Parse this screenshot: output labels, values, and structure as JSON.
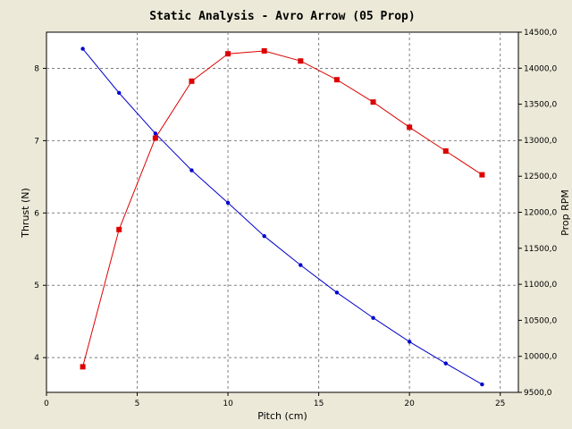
{
  "chart_data": {
    "type": "line",
    "title": "Static Analysis - Avro Arrow (05 Prop)",
    "xlabel": "Pitch (cm)",
    "ylabel_left": "Thrust (N)",
    "ylabel_right": "Prop RPM",
    "xlim": [
      0,
      26
    ],
    "ylim_left": [
      3.52,
      8.5
    ],
    "ylim_right": [
      9500,
      14500
    ],
    "x_ticks": [
      0,
      5,
      10,
      15,
      20,
      25
    ],
    "x_tick_labels": [
      "0",
      "5",
      "10",
      "15",
      "20",
      "25"
    ],
    "y_left_ticks": [
      4,
      5,
      6,
      7,
      8
    ],
    "y_left_tick_labels": [
      "4",
      "5",
      "6",
      "7",
      "8"
    ],
    "y_right_ticks": [
      9500,
      10000,
      10500,
      11000,
      11500,
      12000,
      12500,
      13000,
      13500,
      14000,
      14500
    ],
    "y_right_tick_labels": [
      "9500,0",
      "10000,0",
      "10500,0",
      "11000,0",
      "11500,0",
      "12000,0",
      "12500,0",
      "13000,0",
      "13500,0",
      "14000,0",
      "14500,0"
    ],
    "grid": true,
    "legend": "none",
    "series": [
      {
        "axis": "left",
        "color": "#0000cc",
        "marker": "circle",
        "x": [
          2,
          4,
          6,
          8,
          10,
          12,
          14,
          16,
          18,
          20,
          22,
          24
        ],
        "values": [
          8.27,
          7.66,
          7.1,
          6.59,
          6.14,
          5.68,
          5.28,
          4.9,
          4.55,
          4.22,
          3.92,
          3.63
        ]
      },
      {
        "axis": "right",
        "color": "#dd0000",
        "marker": "square",
        "x": [
          2,
          4,
          6,
          8,
          10,
          12,
          14,
          16,
          18,
          20,
          22,
          24
        ],
        "values": [
          9855,
          11760,
          13030,
          13820,
          14200,
          14240,
          14100,
          13840,
          13530,
          13180,
          12850,
          12520
        ]
      }
    ]
  }
}
